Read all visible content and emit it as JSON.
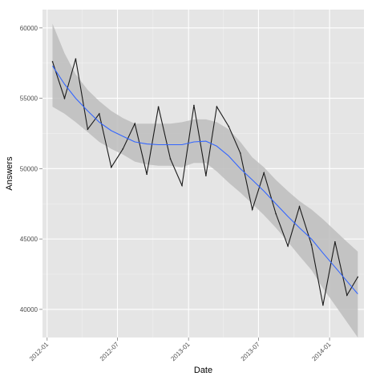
{
  "chart_data": {
    "type": "line",
    "title": "",
    "xlabel": "Date",
    "ylabel": "Answers",
    "xlim": [
      "2011-12-20",
      "2014-03-31"
    ],
    "ylim": [
      38000,
      61300
    ],
    "x_ticks": [
      "2012-01-01",
      "2012-07-01",
      "2013-01-01",
      "2013-07-01",
      "2014-01-01"
    ],
    "x_tick_labels": [
      "2012-01",
      "2012-07",
      "2013-01",
      "2013-07",
      "2014-01"
    ],
    "y_ticks": [
      40000,
      45000,
      50000,
      55000,
      60000
    ],
    "y_tick_labels": [
      "40000",
      "45000",
      "50000",
      "55000",
      "60000"
    ],
    "grid": true,
    "legend": "none",
    "colors": {
      "panel": "#e5e5e5",
      "grid": "#ffffff",
      "line": "#1a1a1a",
      "smooth": "#3366ff",
      "ribbon": "#bdbdbd"
    },
    "series": [
      {
        "type": "line",
        "x": [
          "2012-01-15",
          "2012-02-15",
          "2012-03-15",
          "2012-04-15",
          "2012-05-15",
          "2012-06-15",
          "2012-07-15",
          "2012-08-15",
          "2012-09-15",
          "2012-10-15",
          "2012-11-15",
          "2012-12-15",
          "2013-01-15",
          "2013-02-15",
          "2013-03-15",
          "2013-04-15",
          "2013-05-15",
          "2013-06-15",
          "2013-07-15",
          "2013-08-15",
          "2013-09-15",
          "2013-10-15",
          "2013-11-15",
          "2013-12-15",
          "2014-01-15",
          "2014-02-15",
          "2014-03-15"
        ],
        "values": [
          57600,
          55000,
          57800,
          52800,
          53900,
          50100,
          51400,
          53200,
          49600,
          54400,
          50700,
          48800,
          54500,
          49500,
          54400,
          53000,
          51100,
          47100,
          49700,
          46800,
          44500,
          47300,
          44600,
          40300,
          44800,
          41000,
          42300
        ]
      },
      {
        "type": "smooth",
        "x": [
          "2012-01-15",
          "2012-02-15",
          "2012-03-15",
          "2012-04-15",
          "2012-05-15",
          "2012-06-15",
          "2012-07-15",
          "2012-08-15",
          "2012-09-15",
          "2012-10-15",
          "2012-11-15",
          "2012-12-15",
          "2013-01-15",
          "2013-02-15",
          "2013-03-15",
          "2013-04-15",
          "2013-05-15",
          "2013-06-15",
          "2013-07-15",
          "2013-08-15",
          "2013-09-15",
          "2013-10-15",
          "2013-11-15",
          "2013-12-15",
          "2014-01-15",
          "2014-02-15",
          "2014-03-15"
        ],
        "values": [
          57300,
          56000,
          55000,
          54100,
          53300,
          52700,
          52300,
          51900,
          51750,
          51700,
          51700,
          51700,
          51900,
          51950,
          51600,
          50900,
          50000,
          49200,
          48400,
          47500,
          46600,
          45800,
          45000,
          44000,
          43000,
          42000,
          41100
        ],
        "lower": [
          54400,
          53900,
          53300,
          52600,
          51900,
          51400,
          51000,
          50500,
          50300,
          50200,
          50200,
          50100,
          50400,
          50400,
          49800,
          49000,
          48300,
          47500,
          46700,
          45800,
          44800,
          43800,
          42800,
          41500,
          40300,
          39100,
          38000
        ],
        "upper": [
          60300,
          58200,
          56700,
          55600,
          54800,
          54100,
          53600,
          53200,
          53200,
          53200,
          53200,
          53300,
          53500,
          53500,
          53300,
          52800,
          51900,
          50800,
          50100,
          49200,
          48400,
          47700,
          47100,
          46400,
          45600,
          44800,
          44100
        ]
      }
    ]
  }
}
